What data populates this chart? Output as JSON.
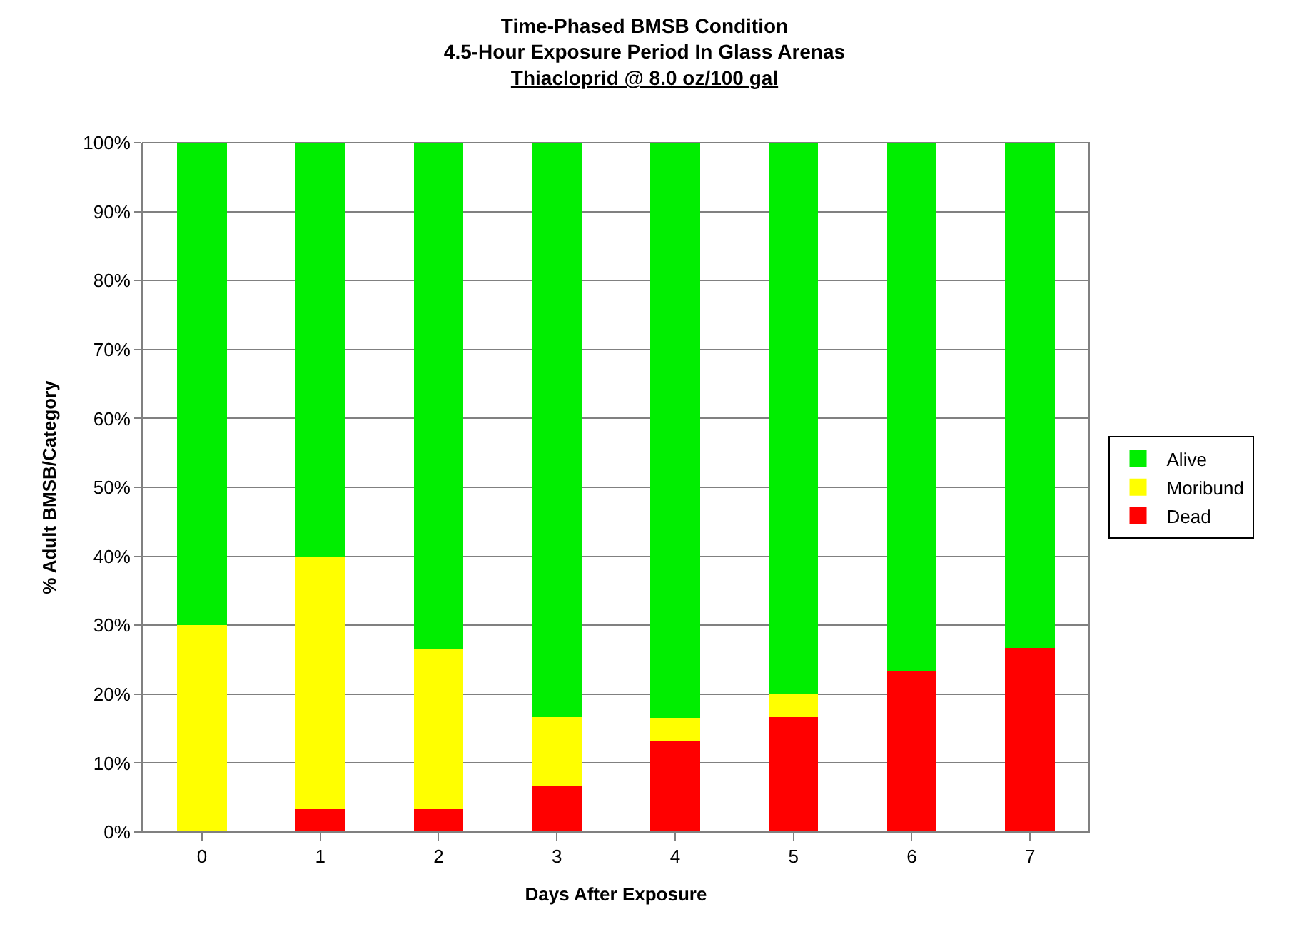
{
  "chart_data": {
    "type": "bar",
    "stacked": true,
    "title": "Time-Phased BMSB Condition\n4.5-Hour Exposure Period In Glass Arenas\nThiacloprid @ 8.0 oz/100 gal",
    "xlabel": "Days After Exposure",
    "ylabel": "% Adult BMSB/Category",
    "categories": [
      "0",
      "1",
      "2",
      "3",
      "4",
      "5",
      "6",
      "7"
    ],
    "series": [
      {
        "name": "Dead",
        "color": "#ff0000",
        "values": [
          0,
          3.3,
          3.3,
          6.7,
          13.3,
          16.7,
          23.3,
          26.7
        ]
      },
      {
        "name": "Moribund",
        "color": "#ffff00",
        "values": [
          30,
          36.7,
          23.3,
          10,
          3.3,
          3.3,
          0,
          0
        ]
      },
      {
        "name": "Alive",
        "color": "#00ee00",
        "values": [
          70,
          60,
          73.4,
          83.3,
          83.4,
          80,
          76.7,
          73.3
        ]
      }
    ],
    "ylim": [
      0,
      100
    ],
    "yticks": [
      {
        "value": 0,
        "label": "0%"
      },
      {
        "value": 10,
        "label": "10%"
      },
      {
        "value": 20,
        "label": "20%"
      },
      {
        "value": 30,
        "label": "30%"
      },
      {
        "value": 40,
        "label": "40%"
      },
      {
        "value": 50,
        "label": "50%"
      },
      {
        "value": 60,
        "label": "60%"
      },
      {
        "value": 70,
        "label": "70%"
      },
      {
        "value": 80,
        "label": "80%"
      },
      {
        "value": 90,
        "label": "90%"
      },
      {
        "value": 100,
        "label": "100%"
      }
    ],
    "grid": "y",
    "legend": "right"
  }
}
